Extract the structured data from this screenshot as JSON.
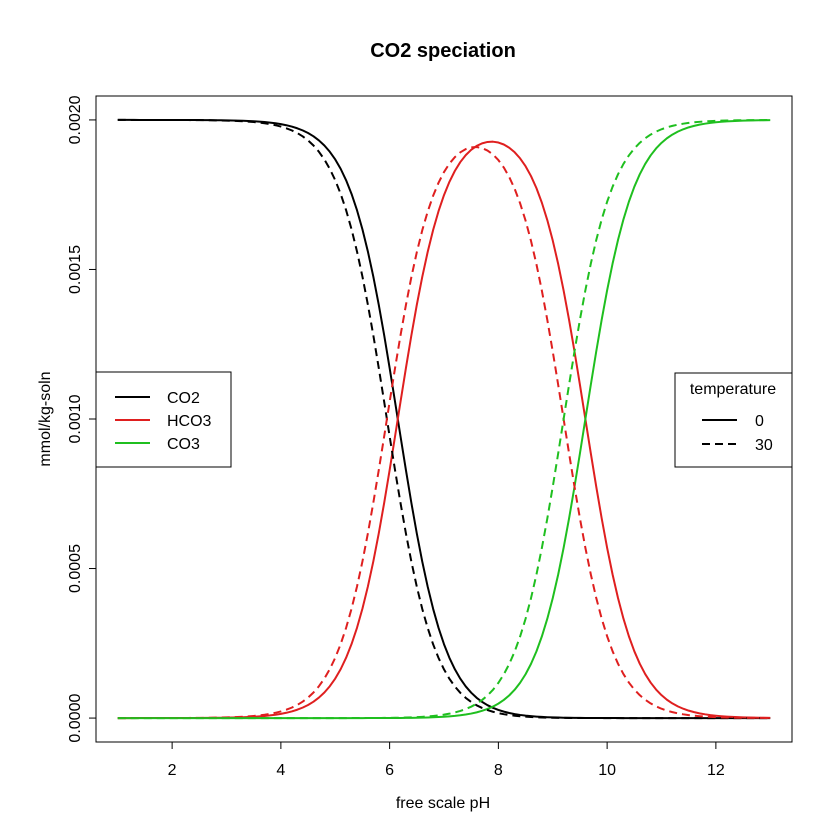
{
  "chart_data": {
    "type": "line",
    "title": "CO2 speciation",
    "xlabel": "free scale pH",
    "ylabel": "mmol/kg-soln",
    "xlim": [
      0.6,
      13.4
    ],
    "ylim": [
      -8e-05,
      0.00208
    ],
    "xticks": [
      2,
      4,
      6,
      8,
      10,
      12
    ],
    "xtick_labels": [
      "2",
      "4",
      "6",
      "8",
      "10",
      "12"
    ],
    "yticks": [
      0.0,
      0.0005,
      0.001,
      0.0015,
      0.002
    ],
    "ytick_labels": [
      "0.0000",
      "0.0005",
      "0.0010",
      "0.0015",
      "0.0020"
    ],
    "total": 0.002,
    "ph_range": [
      1,
      13
    ],
    "colors": {
      "CO2": "#000000",
      "HCO3": "#DF1F1F",
      "CO3": "#1FBF1F"
    },
    "series": [
      {
        "name": "CO2",
        "temperature": "0",
        "species": "CO2",
        "pK1": 6.15,
        "pK2": 9.6
      },
      {
        "name": "HCO3",
        "temperature": "0",
        "species": "HCO3",
        "pK1": 6.15,
        "pK2": 9.6
      },
      {
        "name": "CO3",
        "temperature": "0",
        "species": "CO3",
        "pK1": 6.15,
        "pK2": 9.6
      },
      {
        "name": "CO2",
        "temperature": "30",
        "species": "CO2",
        "pK1": 5.95,
        "pK2": 9.2
      },
      {
        "name": "HCO3",
        "temperature": "30",
        "species": "HCO3",
        "pK1": 5.95,
        "pK2": 9.2
      },
      {
        "name": "CO3",
        "temperature": "30",
        "species": "CO3",
        "pK1": 5.95,
        "pK2": 9.2
      }
    ],
    "legend_species": {
      "placement": "left",
      "entries": [
        {
          "label": "CO2",
          "color": "#000000"
        },
        {
          "label": "HCO3",
          "color": "#DF1F1F"
        },
        {
          "label": "CO3",
          "color": "#1FBF1F"
        }
      ]
    },
    "legend_temperature": {
      "placement": "right",
      "title": "temperature",
      "entries": [
        {
          "label": "0",
          "style": "solid"
        },
        {
          "label": "30",
          "style": "dashed"
        }
      ]
    }
  }
}
